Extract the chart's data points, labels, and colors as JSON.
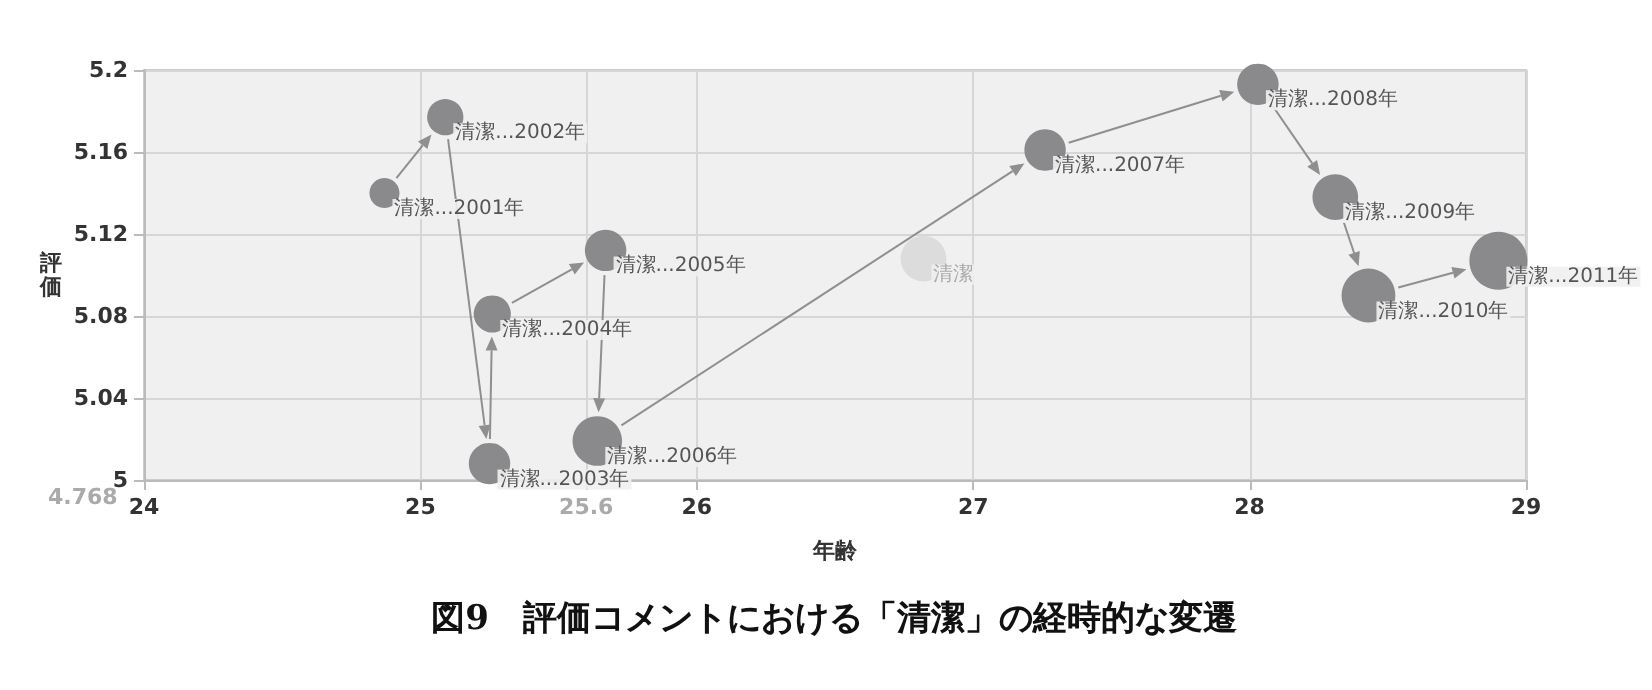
{
  "chart_data": {
    "type": "bubble",
    "title": "図9　評価コメントにおける「清潔」の経時的な変遷",
    "xlabel": "年齢",
    "ylabel": "評価",
    "xlim": [
      24,
      29
    ],
    "xticks": [
      24,
      25,
      {
        "value": 25.6,
        "label": "25.6"
      },
      26,
      27,
      28,
      29
    ],
    "ylim": [
      5,
      5.2
    ],
    "yticks": [
      5,
      5.04,
      5.08,
      5.12,
      5.16,
      5.2
    ],
    "grid": true,
    "annotations": [
      "4.768",
      {
        "text": "清潔...2001年",
        "x": 24.87,
        "y": 5.14
      },
      {
        "text": "清潔...2002年",
        "x": 25.09,
        "y": 5.177
      },
      {
        "text": "清潔...2003年",
        "x": 25.25,
        "y": 5.008
      },
      {
        "text": "清潔...2004年",
        "x": 25.26,
        "y": 5.081
      },
      {
        "text": "清潔...2005年",
        "x": 25.67,
        "y": 5.112
      },
      {
        "text": "清潔...2006年",
        "x": 25.64,
        "y": 5.019
      },
      {
        "text": "清潔...2007年",
        "x": 27.26,
        "y": 5.161
      },
      {
        "text": "清潔...2008年",
        "x": 28.03,
        "y": 5.193
      },
      {
        "text": "清潔...2009年",
        "x": 28.31,
        "y": 5.138
      },
      {
        "text": "清潔...2010年",
        "x": 28.43,
        "y": 5.09
      },
      {
        "text": "清潔...2011年",
        "x": 28.9,
        "y": 5.107
      },
      {
        "text": "清潔",
        "x": 26.82,
        "y": 5.108
      }
    ],
    "series": [
      {
        "color": "#8a8a8c",
        "x": [
          24.87,
          25.09,
          25.25,
          25.26,
          25.67,
          25.64,
          27.26,
          28.03,
          28.31,
          28.43,
          28.9
        ],
        "values": [
          5.14,
          5.177,
          5.008,
          5.081,
          5.112,
          5.019,
          5.161,
          5.193,
          5.138,
          5.09,
          5.107
        ],
        "sizes": [
          0.27,
          0.39,
          0.51,
          0.41,
          0.51,
          0.73,
          0.51,
          0.51,
          0.62,
          0.86,
          1
        ]
      },
      {
        "color": "#dcdcdc",
        "x": [
          26.82
        ],
        "values": [
          5.108
        ],
        "sizes": [
          0.62
        ]
      }
    ]
  }
}
